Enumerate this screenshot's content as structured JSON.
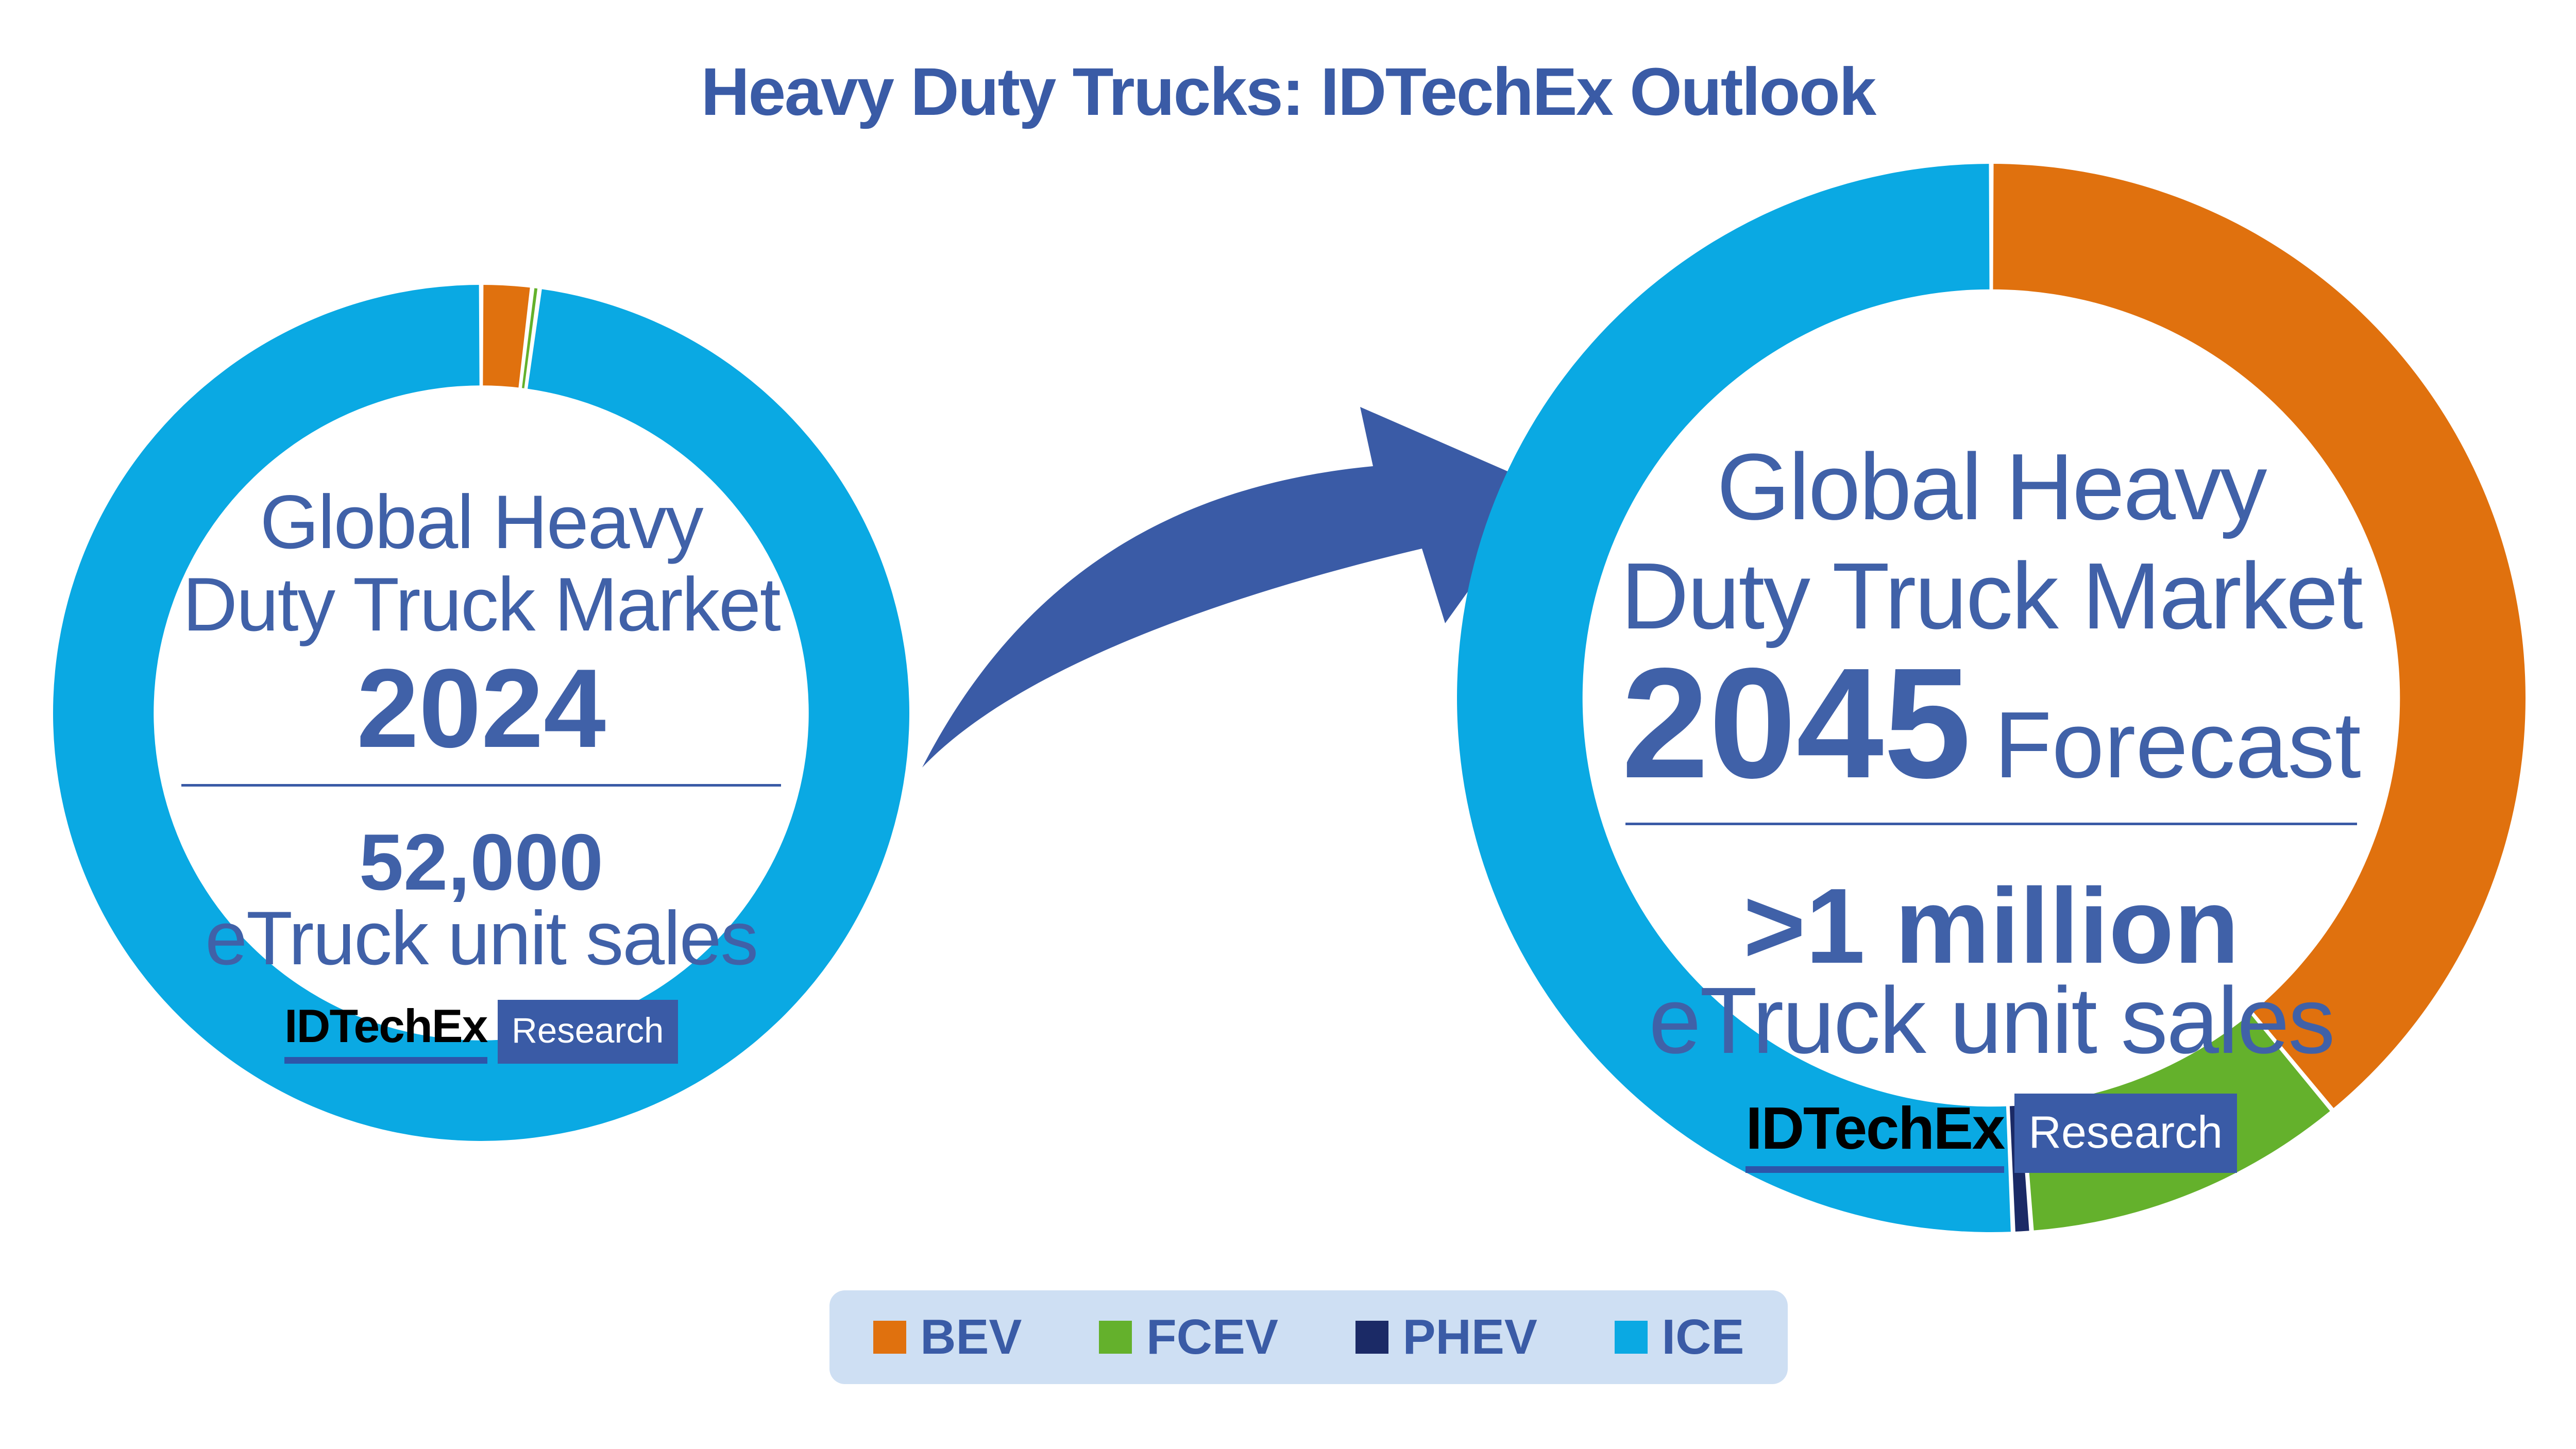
{
  "title": "Heavy Duty Trucks: IDTechEx Outlook",
  "colors": {
    "bev": "#E0710E",
    "fcev": "#64B12C",
    "phev": "#1B2A66",
    "ice": "#0AA9E3",
    "text_blue": "#3A5BA6",
    "heading_blue": "#4061A8",
    "arrow_blue": "#3A5BA6",
    "legend_bg": "#CEDFF3",
    "logo_underline": "#2D55A9",
    "logo_box_bg": "#3A5BA6"
  },
  "donut_2024": {
    "heading_line1": "Global Heavy",
    "heading_line2": "Duty Truck Market",
    "year": "2024",
    "stat": "52,000",
    "caption": "eTruck unit sales"
  },
  "donut_2045": {
    "heading_line1": "Global Heavy",
    "heading_line2": "Duty Truck Market",
    "year": "2045",
    "year_suffix": "Forecast",
    "stat": ">1 million",
    "caption": "eTruck unit sales"
  },
  "logo": {
    "name": "IDTechEx",
    "research": "Research"
  },
  "legend": {
    "items": [
      {
        "label": "BEV",
        "color": "#E0710E"
      },
      {
        "label": "FCEV",
        "color": "#64B12C"
      },
      {
        "label": "PHEV",
        "color": "#1B2A66"
      },
      {
        "label": "ICE",
        "color": "#0AA9E3"
      }
    ]
  },
  "chart_data": [
    {
      "type": "pie",
      "donut": true,
      "title": "Global Heavy Duty Truck Market 2024",
      "center_label": "52,000 eTruck unit sales",
      "categories": [
        "BEV",
        "FCEV",
        "PHEV",
        "ICE"
      ],
      "values": [
        1.9,
        0.28,
        0,
        97.82
      ],
      "unit": "% of unit sales",
      "colors": [
        "#E0710E",
        "#64B12C",
        "#1B2A66",
        "#0AA9E3"
      ],
      "start_angle_deg": 0,
      "direction": "clockwise",
      "inner_radius_fraction": 0.765,
      "gap_deg": 0.6
    },
    {
      "type": "pie",
      "donut": true,
      "title": "Global Heavy Duty Truck Market 2045 Forecast",
      "center_label": ">1 million eTruck unit sales",
      "categories": [
        "BEV",
        "FCEV",
        "PHEV",
        "ICE"
      ],
      "values": [
        39,
        9.8,
        0.55,
        50.65
      ],
      "unit": "% of unit sales",
      "colors": [
        "#E0710E",
        "#64B12C",
        "#1B2A66",
        "#0AA9E3"
      ],
      "start_angle_deg": 0,
      "direction": "clockwise",
      "inner_radius_fraction": 0.765,
      "gap_deg": 0.5
    }
  ]
}
